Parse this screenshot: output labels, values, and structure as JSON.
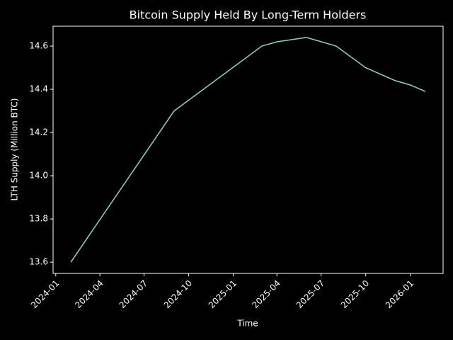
{
  "chart_data": {
    "type": "line",
    "title": "Bitcoin Supply Held By Long-Term Holders",
    "x_label": "Time",
    "y_label": "LTH Supply (Million BTC)",
    "x": [
      "2024-02",
      "2024-09",
      "2025-03",
      "2025-04",
      "2025-06",
      "2025-08",
      "2025-10",
      "2025-12",
      "2026-01",
      "2026-02"
    ],
    "values": [
      13.6,
      14.3,
      14.6,
      14.62,
      14.64,
      14.6,
      14.5,
      14.44,
      14.42,
      14.39
    ],
    "color": "#8dd3c7",
    "xticks": [
      "2024-01",
      "2024-04",
      "2024-07",
      "2024-10",
      "2025-01",
      "2025-04",
      "2025-07",
      "2025-10",
      "2026-01"
    ],
    "ylim": [
      13.548,
      14.692
    ],
    "yticks": [
      13.6,
      13.8,
      {
        "value": 14,
        "label": "14.0"
      },
      14.2,
      14.4,
      14.6
    ],
    "grid": false
  }
}
